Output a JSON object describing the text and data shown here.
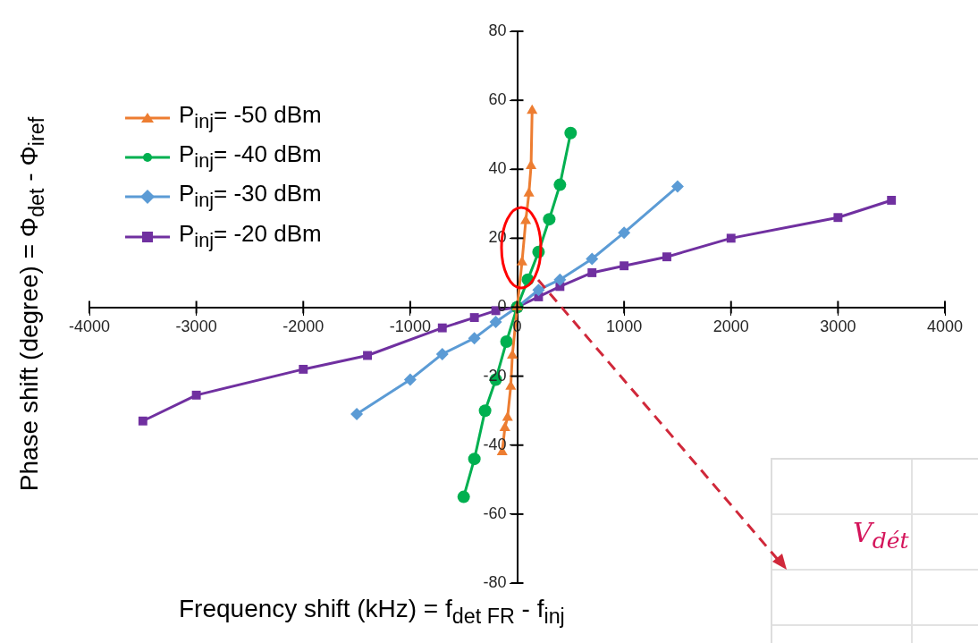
{
  "chart_data": {
    "type": "line",
    "xlabel": "Frequency shift (kHz) = f$_{det FR}$ - f$_{inj}$",
    "ylabel": "Phase shift (degree) = Φ$_{det}$ - Φ$_{iref}$",
    "xlim": [
      -4000,
      4000
    ],
    "xticks": [
      -4000,
      -3000,
      -2000,
      -1000,
      0,
      1000,
      2000,
      3000,
      4000
    ],
    "ylim": [
      -80,
      80
    ],
    "yticks": [
      -80,
      -60,
      -40,
      -20,
      0,
      20,
      40,
      60,
      80
    ],
    "grid": false,
    "legend": "top left",
    "line_style": "solid",
    "annotations": [
      "V$_{dét}$"
    ],
    "series": [
      {
        "name": "P$_{inj}$= -50 dBm",
        "color": "#ed7d31",
        "marker": "triangle",
        "x": [
          -140,
          -115,
          -90,
          -60,
          -45,
          0,
          45,
          80,
          110,
          130,
          140
        ],
        "values": [
          -42,
          -35,
          -32,
          -23,
          -14,
          0,
          13,
          25,
          33,
          41,
          57
        ]
      },
      {
        "name": "P$_{inj}$= -40 dBm",
        "color": "#00b050",
        "marker": "circle",
        "x": [
          -500,
          -400,
          -300,
          -200,
          -100,
          0,
          100,
          200,
          300,
          400,
          500
        ],
        "values": [
          -55,
          -44,
          -30,
          -21,
          -10,
          0,
          8,
          16,
          25.5,
          35.5,
          50.5
        ]
      },
      {
        "name": "P$_{inj}$= -30 dBm",
        "color": "#5b9bd5",
        "marker": "diamond",
        "x": [
          -1500,
          -1000,
          -700,
          -400,
          -200,
          0,
          200,
          400,
          700,
          1000,
          1500
        ],
        "values": [
          -31,
          -21,
          -13.6,
          -9,
          -4.3,
          0,
          5,
          8,
          14,
          21.6,
          35
        ]
      },
      {
        "name": "P$_{inj}$= -20 dBm",
        "color": "#7030a0",
        "marker": "square",
        "x": [
          -3500,
          -3000,
          -2000,
          -1400,
          -700,
          -400,
          -200,
          0,
          200,
          400,
          700,
          1000,
          1400,
          2000,
          3000,
          3500
        ],
        "values": [
          -33,
          -25.5,
          -18,
          -14,
          -6,
          -3,
          -1,
          0,
          3,
          6,
          10,
          12,
          14.6,
          20,
          26,
          31
        ]
      }
    ]
  }
}
